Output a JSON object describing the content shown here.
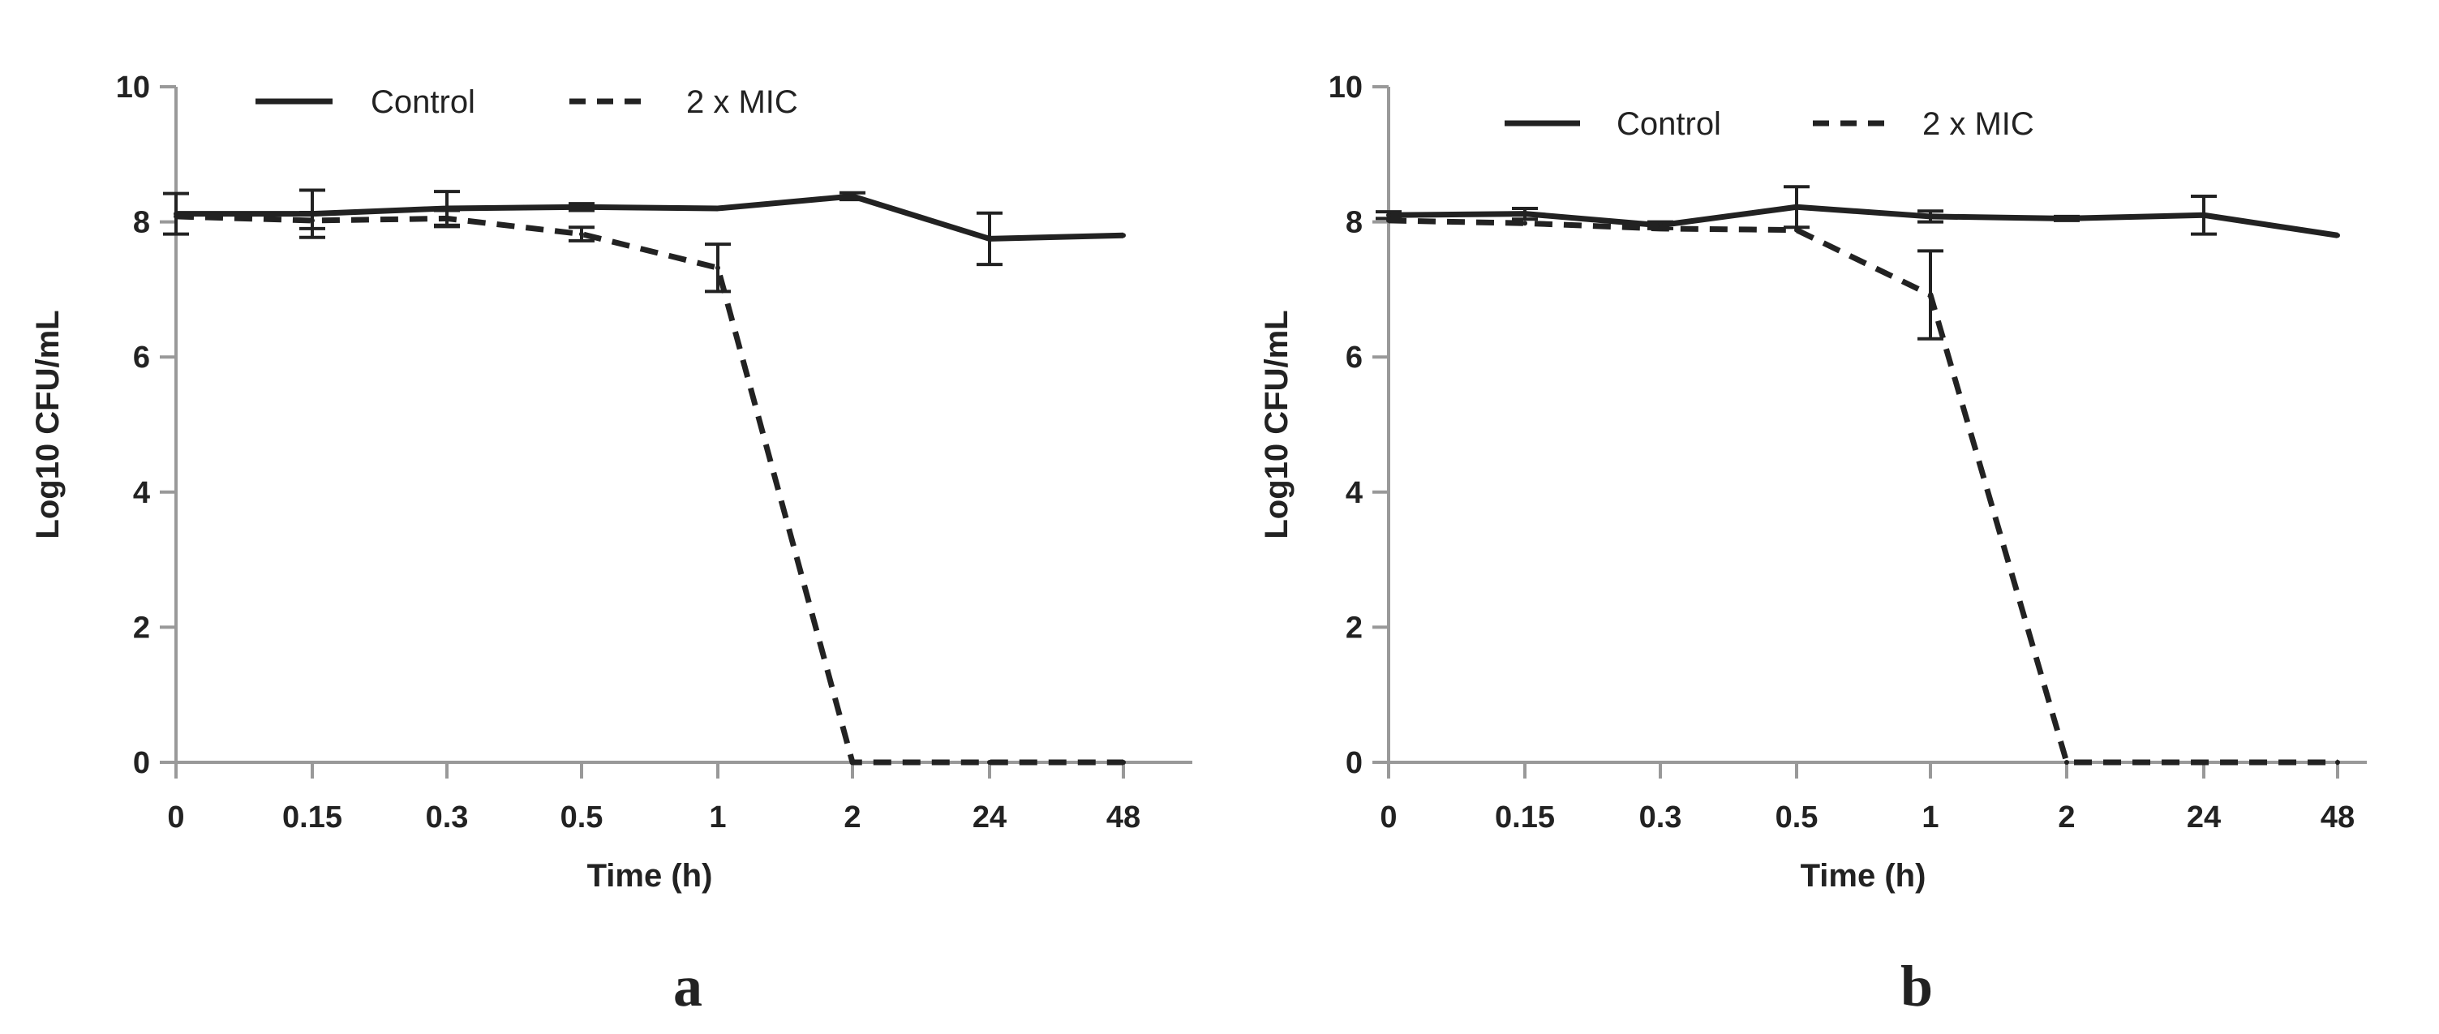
{
  "chart_data": [
    {
      "type": "line",
      "panel": "a",
      "xlabel": "Time (h)",
      "ylabel": "Log10 CFU/mL",
      "ylim": [
        0,
        10
      ],
      "yticks": [
        0,
        2,
        4,
        6,
        8,
        10
      ],
      "categories": [
        "0",
        "0.15",
        "0.3",
        "0.5",
        "1",
        "2",
        "24",
        "48"
      ],
      "legend_position": "top",
      "series": [
        {
          "name": "Control",
          "style": "solid",
          "values": [
            8.12,
            8.12,
            8.2,
            8.22,
            8.2,
            8.38,
            7.75,
            7.8
          ],
          "errors": [
            0.3,
            0.35,
            0.25,
            0.05,
            null,
            0.05,
            0.38,
            null
          ]
        },
        {
          "name": "2 x MIC",
          "style": "dashed",
          "values": [
            8.08,
            8.02,
            8.05,
            7.82,
            7.32,
            0,
            0,
            0
          ],
          "errors": [
            null,
            0.12,
            0.12,
            0.1,
            0.35,
            null,
            null,
            null
          ]
        }
      ]
    },
    {
      "type": "line",
      "panel": "b",
      "xlabel": "Time (h)",
      "ylabel": "Log10 CFU/mL",
      "ylim": [
        0,
        10
      ],
      "yticks": [
        0,
        2,
        4,
        6,
        8,
        10
      ],
      "categories": [
        "0",
        "0.15",
        "0.3",
        "0.5",
        "1",
        "2",
        "24",
        "48"
      ],
      "legend_position": "top",
      "series": [
        {
          "name": "Control",
          "style": "solid",
          "values": [
            8.1,
            8.12,
            7.95,
            8.22,
            8.08,
            8.05,
            8.1,
            7.8
          ],
          "errors": [
            0.05,
            0.08,
            0.05,
            0.3,
            0.08,
            0.03,
            0.28,
            null
          ]
        },
        {
          "name": "2 x MIC",
          "style": "dashed",
          "values": [
            8.02,
            7.98,
            7.9,
            7.88,
            6.92,
            0,
            0,
            0
          ],
          "errors": [
            null,
            null,
            null,
            null,
            0.65,
            null,
            null,
            null
          ]
        }
      ]
    }
  ]
}
